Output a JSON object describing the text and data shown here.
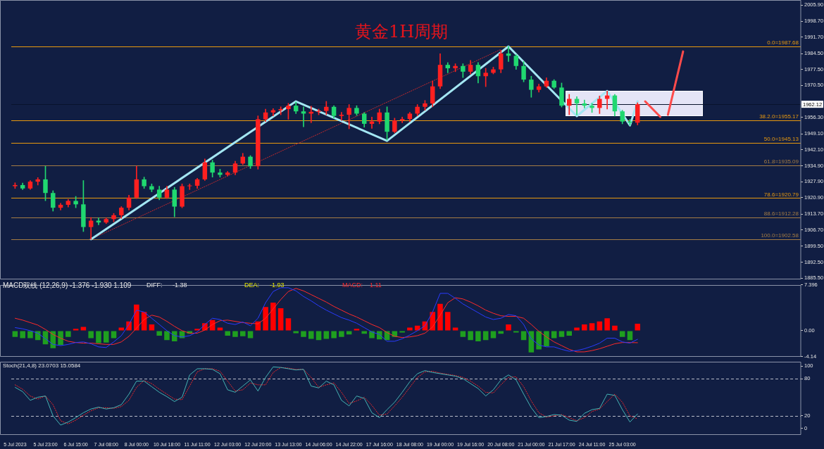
{
  "chart_data": [
    {
      "type": "candlestick",
      "title": "黄金1H周期",
      "categories": [
        null,
        null,
        null,
        null,
        null,
        null,
        null,
        null,
        null,
        null,
        null,
        null,
        null,
        null,
        null,
        null,
        null,
        null,
        null,
        null,
        null,
        null,
        null,
        null,
        null,
        null,
        null,
        null,
        null,
        null,
        null,
        null,
        null,
        null,
        null,
        null,
        null,
        null,
        null,
        null,
        null,
        null,
        null,
        null,
        null,
        null,
        null,
        null,
        null,
        null,
        null,
        null,
        null,
        null,
        null,
        null,
        null,
        null,
        null,
        null,
        null,
        null,
        null,
        null,
        null,
        null,
        null,
        null,
        null,
        null,
        null,
        null,
        null,
        null,
        null,
        null,
        null,
        null,
        null,
        null,
        null,
        null,
        null,
        null,
        null,
        null,
        null,
        null,
        null,
        null,
        null,
        null,
        null,
        null,
        null,
        null,
        null,
        null,
        null,
        null,
        null,
        null,
        null,
        null
      ],
      "ohlc": [
        [
          1926.0,
          1927.5,
          1925.0,
          1926.5
        ],
        [
          1926.5,
          1927.4,
          1924.5,
          1925.0
        ],
        [
          1925.0,
          1928.5,
          1924.6,
          1928.0
        ],
        [
          1928.0,
          1929.8,
          1926.5,
          1929.0
        ],
        [
          1929.0,
          1934.8,
          1919.6,
          1923.0
        ],
        [
          1923.0,
          1924.0,
          1915.0,
          1916.5
        ],
        [
          1916.5,
          1918.5,
          1915.5,
          1917.8
        ],
        [
          1917.8,
          1920.2,
          1916.8,
          1919.5
        ],
        [
          1919.5,
          1921.5,
          1916.5,
          1918.0
        ],
        [
          1918.0,
          1928.5,
          1906.0,
          1908.0
        ],
        [
          1908.0,
          1912.2,
          1902.58,
          1910.8
        ],
        [
          1910.8,
          1912.0,
          1909.0,
          1910.0
        ],
        [
          1910.0,
          1912.0,
          1909.5,
          1911.5
        ],
        [
          1911.5,
          1914.0,
          1910.3,
          1913.2
        ],
        [
          1913.2,
          1917.0,
          1911.8,
          1916.5
        ],
        [
          1916.5,
          1922.0,
          1915.5,
          1921.0
        ],
        [
          1921.0,
          1934.8,
          1920.5,
          1929.0
        ],
        [
          1929.0,
          1930.0,
          1925.0,
          1926.0
        ],
        [
          1926.0,
          1927.0,
          1923.5,
          1924.5
        ],
        [
          1924.5,
          1926.0,
          1920.0,
          1921.0
        ],
        [
          1921.0,
          1926.0,
          1920.5,
          1924.5
        ],
        [
          1924.5,
          1925.5,
          1912.5,
          1917.0
        ],
        [
          1917.0,
          1927.0,
          1916.5,
          1926.0
        ],
        [
          1926.0,
          1927.0,
          1924.5,
          1926.2
        ],
        [
          1926.2,
          1929.5,
          1925.0,
          1929.0
        ],
        [
          1929.0,
          1938.0,
          1928.5,
          1936.5
        ],
        [
          1936.5,
          1937.5,
          1930.0,
          1932.0
        ],
        [
          1932.0,
          1933.5,
          1930.0,
          1931.0
        ],
        [
          1931.0,
          1932.5,
          1930.5,
          1932.0
        ],
        [
          1932.0,
          1937.0,
          1931.0,
          1936.0
        ],
        [
          1936.0,
          1940.5,
          1935.5,
          1939.0
        ],
        [
          1939.0,
          1939.5,
          1933.8,
          1934.8
        ],
        [
          1934.8,
          1957.0,
          1933.5,
          1955.5
        ],
        [
          1955.5,
          1960.0,
          1954.5,
          1958.5
        ],
        [
          1958.5,
          1960.2,
          1957.0,
          1959.5
        ],
        [
          1959.5,
          1961.0,
          1957.5,
          1960.0
        ],
        [
          1960.0,
          1962.5,
          1955.5,
          1961.5
        ],
        [
          1961.5,
          1963.1,
          1958.0,
          1959.0
        ],
        [
          1959.0,
          1961.0,
          1952.2,
          1958.0
        ],
        [
          1958.0,
          1961.3,
          1954.0,
          1958.8
        ],
        [
          1958.8,
          1960.0,
          1957.5,
          1959.2
        ],
        [
          1959.2,
          1963.4,
          1957.5,
          1961.0
        ],
        [
          1961.0,
          1961.5,
          1956.0,
          1957.0
        ],
        [
          1957.0,
          1958.6,
          1955.0,
          1957.5
        ],
        [
          1957.5,
          1962.0,
          1951.3,
          1960.5
        ],
        [
          1960.5,
          1961.5,
          1957.2,
          1958.0
        ],
        [
          1958.0,
          1958.5,
          1952.0,
          1953.5
        ],
        [
          1953.5,
          1956.5,
          1951.5,
          1954.5
        ],
        [
          1954.5,
          1960.0,
          1953.5,
          1958.5
        ],
        [
          1958.5,
          1961.0,
          1946.3,
          1950.0
        ],
        [
          1950.0,
          1956.0,
          1949.5,
          1955.0
        ],
        [
          1955.0,
          1956.5,
          1954.0,
          1955.6
        ],
        [
          1955.6,
          1958.6,
          1954.5,
          1958.0
        ],
        [
          1958.0,
          1962.0,
          1957.0,
          1961.0
        ],
        [
          1961.0,
          1963.8,
          1959.5,
          1962.5
        ],
        [
          1962.5,
          1972.4,
          1961.0,
          1970.0
        ],
        [
          1970.0,
          1984.4,
          1969.0,
          1979.5
        ],
        [
          1979.5,
          1980.5,
          1976.0,
          1978.0
        ],
        [
          1978.0,
          1980.0,
          1976.5,
          1979.0
        ],
        [
          1979.0,
          1980.0,
          1973.9,
          1976.5
        ],
        [
          1976.5,
          1981.5,
          1975.5,
          1979.5
        ],
        [
          1979.5,
          1980.5,
          1971.5,
          1974.5
        ],
        [
          1974.5,
          1978.0,
          1969.9,
          1976.0
        ],
        [
          1976.0,
          1978.5,
          1975.5,
          1977.5
        ],
        [
          1977.5,
          1986.0,
          1976.0,
          1984.5
        ],
        [
          1984.5,
          1987.68,
          1981.0,
          1983.5
        ],
        [
          1983.5,
          1984.0,
          1977.5,
          1979.0
        ],
        [
          1979.0,
          1981.0,
          1972.0,
          1973.0
        ],
        [
          1973.0,
          1974.5,
          1965.2,
          1968.5
        ],
        [
          1968.5,
          1971.0,
          1967.5,
          1970.0
        ],
        [
          1970.0,
          1973.8,
          1969.5,
          1972.5
        ],
        [
          1972.5,
          1973.0,
          1969.0,
          1969.5
        ],
        [
          1969.5,
          1971.5,
          1960.9,
          1961.5
        ],
        [
          1961.5,
          1966.5,
          1957.5,
          1964.5
        ],
        [
          1964.5,
          1965.5,
          1957.5,
          1962.5
        ],
        [
          1962.5,
          1964.0,
          1960.5,
          1961.5
        ],
        [
          1961.5,
          1962.5,
          1958.5,
          1960.5
        ],
        [
          1960.5,
          1965.8,
          1958.0,
          1964.5
        ],
        [
          1964.5,
          1968.0,
          1960.0,
          1966.0
        ],
        [
          1966.0,
          1966.5,
          1956.9,
          1959.0
        ],
        [
          1959.0,
          1959.5,
          1953.5,
          1954.5
        ],
        [
          1954.5,
          1955.5,
          1952.8,
          1954.0
        ],
        [
          1954.0,
          1962.8,
          1953.0,
          1962.12
        ],
        null,
        null,
        null,
        null,
        null,
        null,
        null,
        null,
        null,
        null,
        null,
        null,
        null,
        null,
        null,
        null,
        null,
        null,
        null,
        null,
        null
      ],
      "colors": [
        "#ff2020",
        "#20d870",
        "#ff2020",
        "#ff2020",
        "#20d870",
        "#20d870",
        "#ff2020",
        "#ff2020",
        "#20d870",
        "#20d870",
        "#ff2020",
        "#20d870",
        "#ff2020",
        "#ff2020",
        "#ff2020",
        "#ff2020",
        "#ff2020",
        "#20d870",
        "#20d870",
        "#20d870",
        "#ff2020",
        "#20d870",
        "#ff2020",
        "#ff2020",
        "#ff2020",
        "#ff2020",
        "#20d870",
        "#20d870",
        "#ff2020",
        "#ff2020",
        "#ff2020",
        "#20d870",
        "#ff2020",
        "#ff2020",
        "#ff2020",
        "#ff2020",
        "#ff2020",
        "#20d870",
        "#20d870",
        "#ff2020",
        "#ff2020",
        "#ff2020",
        "#20d870",
        "#ff2020",
        "#ff2020",
        "#20d870",
        "#20d870",
        "#ff2020",
        "#ff2020",
        "#20d870",
        "#ff2020",
        "#ff2020",
        "#ff2020",
        "#ff2020",
        "#ff2020",
        "#ff2020",
        "#ff2020",
        "#20d870",
        "#ff2020",
        "#20d870",
        "#ff2020",
        "#20d870",
        "#ff2020",
        "#ff2020",
        "#ff2020",
        "#20d870",
        "#20d870",
        "#20d870",
        "#20d870",
        "#ff2020",
        "#ff2020",
        "#20d870",
        "#20d870",
        "#ff2020",
        "#20d870",
        "#20d870",
        "#20d870",
        "#ff2020",
        "#ff2020",
        "#20d870",
        "#20d870",
        "#20d870",
        "#ff2020",
        null,
        null,
        null,
        null,
        null,
        null,
        null,
        null,
        null,
        null,
        null,
        null,
        null,
        null,
        null,
        null,
        null,
        null,
        null,
        null,
        null
      ],
      "series": [
        {
          "type": "line",
          "color": "#a3e6f2",
          "values": [
            null,
            null,
            null,
            null,
            null,
            null,
            null,
            null,
            null,
            null,
            1902.6,
            null,
            null,
            null,
            null,
            null,
            null,
            null,
            null,
            null,
            null,
            null,
            null,
            null,
            null,
            null,
            null,
            null,
            null,
            null,
            null,
            null,
            null,
            null,
            null,
            null,
            null,
            1963.4,
            null,
            null,
            null,
            null,
            null,
            null,
            null,
            null,
            null,
            null,
            null,
            1946.0,
            null,
            null,
            null,
            null,
            null,
            null,
            null,
            null,
            null,
            null,
            null,
            null,
            null,
            null,
            null,
            1987.6,
            null,
            null,
            null,
            null,
            null,
            null,
            null,
            null,
            1956.9,
            null,
            null,
            null,
            1968.0,
            null,
            null,
            1952.8,
            1963.4,
            null,
            null,
            null,
            null,
            null,
            null,
            null,
            null,
            null,
            null,
            null,
            null,
            null,
            null,
            null,
            null,
            null,
            null,
            null,
            null,
            null
          ]
        },
        {
          "type": "line",
          "color": "#ff4b4b",
          "values": [
            null,
            null,
            null,
            null,
            null,
            null,
            null,
            null,
            null,
            null,
            null,
            null,
            null,
            null,
            null,
            null,
            null,
            null,
            null,
            null,
            null,
            null,
            null,
            null,
            null,
            null,
            null,
            null,
            null,
            null,
            null,
            null,
            null,
            null,
            null,
            null,
            null,
            null,
            null,
            null,
            null,
            null,
            null,
            null,
            null,
            null,
            null,
            null,
            null,
            null,
            null,
            null,
            null,
            null,
            null,
            null,
            null,
            null,
            null,
            null,
            null,
            null,
            null,
            null,
            null,
            null,
            null,
            null,
            null,
            null,
            null,
            null,
            null,
            null,
            null,
            null,
            null,
            null,
            null,
            null,
            null,
            null,
            null,
            1963.4,
            null,
            1956.6,
            null,
            null,
            null,
            null,
            null,
            null,
            null,
            null,
            null,
            null,
            null,
            null,
            null,
            null,
            null,
            null,
            null,
            null
          ]
        },
        {
          "type": "line",
          "color": "#ff4b4b",
          "values": [
            null,
            null,
            null,
            null,
            null,
            null,
            null,
            null,
            null,
            null,
            null,
            null,
            null,
            null,
            null,
            null,
            null,
            null,
            null,
            null,
            null,
            null,
            null,
            null,
            null,
            null,
            null,
            null,
            null,
            null,
            null,
            null,
            null,
            null,
            null,
            null,
            null,
            null,
            null,
            null,
            null,
            null,
            null,
            null,
            null,
            null,
            null,
            null,
            null,
            null,
            null,
            null,
            null,
            null,
            null,
            null,
            null,
            null,
            null,
            null,
            null,
            null,
            null,
            null,
            null,
            null,
            null,
            null,
            null,
            null,
            null,
            null,
            null,
            null,
            null,
            null,
            null,
            null,
            null,
            null,
            null,
            null,
            null,
            null,
            null,
            null,
            1957.5,
            null,
            1985.4,
            null,
            null,
            null,
            null,
            null,
            null,
            null,
            null,
            null,
            null,
            null,
            null,
            null,
            null,
            null
          ]
        },
        {
          "type": "line",
          "color": "#d42a2a",
          "line_style": "dotted",
          "values": [
            null,
            null,
            null,
            null,
            null,
            null,
            null,
            null,
            null,
            null,
            1902.6,
            null,
            null,
            null,
            null,
            null,
            null,
            null,
            null,
            null,
            null,
            null,
            null,
            null,
            null,
            null,
            null,
            null,
            null,
            null,
            null,
            null,
            null,
            null,
            null,
            null,
            null,
            null,
            null,
            null,
            null,
            null,
            null,
            null,
            null,
            null,
            null,
            null,
            null,
            null,
            null,
            null,
            null,
            null,
            null,
            null,
            null,
            null,
            null,
            null,
            null,
            null,
            null,
            null,
            1986.3,
            null,
            null,
            null,
            null,
            null,
            null,
            null,
            null,
            null,
            null,
            null,
            null,
            null,
            null,
            null,
            null,
            null,
            null,
            null,
            null,
            null,
            null,
            null,
            null,
            null,
            null,
            null,
            null,
            null,
            null,
            null,
            null,
            null,
            null,
            null,
            null,
            null,
            null,
            null
          ]
        }
      ],
      "ylim": [
        1884.9,
        2008.1
      ],
      "yticks": [
        {
          "value": 2005.9,
          "label": "2005.90"
        },
        {
          "value": 1998.7,
          "label": "1998.70"
        },
        {
          "value": 1991.7,
          "label": "1991.70"
        },
        {
          "value": 1984.5,
          "label": "1984.50"
        },
        {
          "value": 1977.5,
          "label": "1977.50"
        },
        {
          "value": 1970.5,
          "label": "1970.50"
        },
        {
          "value": 1956.3,
          "label": "1956.30"
        },
        {
          "value": 1949.1,
          "label": "1949.10"
        },
        {
          "value": 1942.1,
          "label": "1942.10"
        },
        {
          "value": 1934.9,
          "label": "1934.90"
        },
        {
          "value": 1927.9,
          "label": "1927.90"
        },
        {
          "value": 1920.9,
          "label": "1920.90"
        },
        {
          "value": 1913.7,
          "label": "1913.70"
        },
        {
          "value": 1906.7,
          "label": "1906.70"
        },
        {
          "value": 1899.5,
          "label": "1899.50"
        },
        {
          "value": 1892.5,
          "label": "1892.50"
        },
        {
          "value": 1885.5,
          "label": "1885.50"
        }
      ],
      "ref_lines": [
        {
          "axis": "y",
          "value": 1987.68,
          "label": "0.0=1987.68",
          "color": "#e8990f"
        },
        {
          "axis": "y",
          "value": 1955.17,
          "label": "38.2.0=1955.17",
          "color": "#e8990f"
        },
        {
          "axis": "y",
          "value": 1945.13,
          "label": "50.0=1945.13",
          "color": "#e8990f"
        },
        {
          "axis": "y",
          "value": 1935.09,
          "label": "61.8=1935.09",
          "color": "#a47c44"
        },
        {
          "axis": "y",
          "value": 1920.79,
          "label": "78.6=1920.79",
          "color": "#e8990f"
        },
        {
          "axis": "y",
          "value": 1912.28,
          "label": "88.6=1912.28",
          "color": "#a47c44"
        },
        {
          "axis": "y",
          "value": 1902.58,
          "label": "100.0=1902.58",
          "color": "#a47c44"
        },
        {
          "axis": "y",
          "value": 1962.12,
          "color": "#08122c"
        }
      ],
      "annotations": [
        {
          "text": "1962.12",
          "y": 1962.12
        }
      ],
      "grid": false,
      "legend": false,
      "marker": "none",
      "tick_labels": "y"
    },
    {
      "type": "bar",
      "title": "MACD双线 (12,26,9) -1.376 -1.930 1.109",
      "categories": [
        null,
        null,
        null,
        null,
        null,
        null,
        null,
        null,
        null,
        null,
        null,
        null,
        null,
        null,
        null,
        null,
        null,
        null,
        null,
        null,
        null,
        null,
        null,
        null,
        null,
        null,
        null,
        null,
        null,
        null,
        null,
        null,
        null,
        null,
        null,
        null,
        null,
        null,
        null,
        null,
        null,
        null,
        null,
        null,
        null,
        null,
        null,
        null,
        null,
        null,
        null,
        null,
        null,
        null,
        null,
        null,
        null,
        null,
        null,
        null,
        null,
        null,
        null,
        null,
        null,
        null,
        null,
        null,
        null,
        null,
        null,
        null,
        null,
        null,
        null,
        null,
        null,
        null,
        null,
        null,
        null,
        null,
        null,
        null,
        null,
        null,
        null,
        null,
        null,
        null,
        null,
        null,
        null,
        null,
        null,
        null,
        null,
        null,
        null,
        null,
        null,
        null,
        null,
        null
      ],
      "series": [
        {
          "type": "bar",
          "values": [
            -1.0,
            -1.2,
            -1.2,
            -1.5,
            -2.2,
            -2.8,
            -2.3,
            -1.0,
            0.3,
            0.6,
            -1.2,
            -2.0,
            -1.9,
            -1.2,
            0.5,
            1.5,
            4.2,
            3.0,
            1.0,
            -0.8,
            -1.5,
            -1.7,
            -1.2,
            -0.5,
            0.3,
            1.2,
            1.7,
            0.5,
            -0.8,
            -1.0,
            -0.9,
            -1.2,
            1.5,
            3.8,
            4.5,
            3.6,
            2.0,
            -0.4,
            -1.0,
            -1.3,
            -1.5,
            -1.3,
            -1.2,
            -1.0,
            -0.6,
            0.3,
            -0.5,
            -1.2,
            -1.4,
            -1.5,
            -1.0,
            -0.3,
            0.5,
            0.8,
            1.5,
            3.0,
            4.3,
            3.0,
            0.5,
            -1.0,
            -1.5,
            -1.7,
            -1.5,
            -1.2,
            -0.5,
            1.0,
            -0.3,
            -1.5,
            -3.5,
            -3.0,
            -2.5,
            -1.2,
            -1.0,
            -0.8,
            0.5,
            1.0,
            1.2,
            1.5,
            2.0,
            0.8,
            -1.0,
            -1.5,
            1.11,
            null,
            null,
            null,
            null,
            null,
            null,
            null,
            null,
            null,
            null,
            null,
            null,
            null,
            null,
            null,
            null,
            null,
            null,
            null,
            null,
            null
          ],
          "colors": [
            "#1f9f1f",
            "#1f9f1f",
            "#1f9f1f",
            "#1f9f1f",
            "#1f9f1f",
            "#1f9f1f",
            "#1f9f1f",
            "#1f9f1f",
            "#ff0000",
            "#ff0000",
            "#1f9f1f",
            "#1f9f1f",
            "#1f9f1f",
            "#1f9f1f",
            "#ff0000",
            "#ff0000",
            "#ff0000",
            "#ff0000",
            "#ff0000",
            "#1f9f1f",
            "#1f9f1f",
            "#1f9f1f",
            "#1f9f1f",
            "#1f9f1f",
            "#ff0000",
            "#ff0000",
            "#ff0000",
            "#ff0000",
            "#1f9f1f",
            "#1f9f1f",
            "#1f9f1f",
            "#1f9f1f",
            "#ff0000",
            "#ff0000",
            "#ff0000",
            "#ff0000",
            "#ff0000",
            "#1f9f1f",
            "#1f9f1f",
            "#1f9f1f",
            "#1f9f1f",
            "#1f9f1f",
            "#1f9f1f",
            "#1f9f1f",
            "#1f9f1f",
            "#ff0000",
            "#1f9f1f",
            "#1f9f1f",
            "#1f9f1f",
            "#1f9f1f",
            "#1f9f1f",
            "#1f9f1f",
            "#ff0000",
            "#ff0000",
            "#ff0000",
            "#ff0000",
            "#ff0000",
            "#ff0000",
            "#ff0000",
            "#1f9f1f",
            "#1f9f1f",
            "#1f9f1f",
            "#1f9f1f",
            "#1f9f1f",
            "#1f9f1f",
            "#ff0000",
            "#1f9f1f",
            "#1f9f1f",
            "#1f9f1f",
            "#1f9f1f",
            "#1f9f1f",
            "#1f9f1f",
            "#1f9f1f",
            "#1f9f1f",
            "#ff0000",
            "#ff0000",
            "#ff0000",
            "#ff0000",
            "#ff0000",
            "#ff0000",
            "#1f9f1f",
            "#1f9f1f",
            "#ff0000",
            null,
            null,
            null,
            null,
            null,
            null,
            null,
            null,
            null,
            null,
            null,
            null,
            null,
            null,
            null,
            null,
            null,
            null,
            null,
            null,
            null
          ]
        },
        {
          "type": "line",
          "color": "#2a3cff",
          "values": [
            0.5,
            0.3,
            0.0,
            -0.4,
            -1.3,
            -2.2,
            -2.4,
            -2.2,
            -1.9,
            -1.8,
            -2.1,
            -2.6,
            -2.7,
            -1.8,
            -0.8,
            1.0,
            3.3,
            3.0,
            2.0,
            1.0,
            0.0,
            -0.8,
            -1.0,
            -0.8,
            -0.2,
            1.0,
            2.0,
            1.8,
            1.2,
            1.0,
            1.4,
            0.8,
            2.0,
            4.5,
            6.3,
            6.9,
            6.9,
            6.4,
            5.5,
            4.8,
            4.0,
            3.3,
            2.7,
            2.1,
            1.7,
            1.2,
            0.5,
            -0.2,
            -0.6,
            -1.7,
            -1.7,
            -1.3,
            -0.7,
            0.0,
            0.8,
            3.0,
            6.0,
            6.0,
            5.2,
            4.3,
            3.6,
            2.9,
            2.2,
            1.8,
            2.0,
            2.6,
            2.4,
            1.0,
            -1.3,
            -2.3,
            -2.6,
            -2.6,
            -3.0,
            -3.3,
            -3.2,
            -2.9,
            -2.5,
            -2.0,
            -1.2,
            -1.2,
            -1.8,
            -2.0,
            -1.38,
            null,
            null,
            null,
            null,
            null,
            null,
            null,
            null,
            null,
            null,
            null,
            null,
            null,
            null,
            null,
            null,
            null,
            null,
            null,
            null,
            null
          ]
        },
        {
          "type": "line",
          "color": "#ff2a2a",
          "values": [
            2.0,
            1.7,
            1.3,
            0.9,
            0.2,
            -0.6,
            -1.2,
            -1.7,
            -1.9,
            -2.0,
            -2.0,
            -2.1,
            -2.2,
            -2.2,
            -1.8,
            -0.9,
            0.4,
            1.8,
            2.5,
            2.2,
            1.5,
            0.7,
            0.0,
            -0.4,
            -0.4,
            0.1,
            1.0,
            1.6,
            1.7,
            1.5,
            1.3,
            1.2,
            1.1,
            2.0,
            3.5,
            5.0,
            6.3,
            6.8,
            6.4,
            5.8,
            5.2,
            4.6,
            3.9,
            3.3,
            2.7,
            2.2,
            1.6,
            1.0,
            0.5,
            -0.3,
            -0.9,
            -1.1,
            -1.0,
            -0.8,
            -0.4,
            0.6,
            2.5,
            4.5,
            5.3,
            5.1,
            4.6,
            4.0,
            3.3,
            2.8,
            2.4,
            2.3,
            2.3,
            2.0,
            1.0,
            -0.1,
            -1.0,
            -1.8,
            -2.4,
            -3.0,
            -3.4,
            -3.4,
            -3.2,
            -2.9,
            -2.5,
            -2.1,
            -1.9,
            -1.9,
            -1.93,
            null,
            null,
            null,
            null,
            null,
            null,
            null,
            null,
            null,
            null,
            null,
            null,
            null,
            null,
            null,
            null,
            null,
            null,
            null,
            null,
            null
          ]
        }
      ],
      "ylim": [
        -4.14,
        7.396
      ],
      "yticks": [
        7.396,
        {
          "value": 0,
          "label": "0.00"
        },
        -4.14
      ],
      "annotations": [
        "DIFF:",
        "-1.38",
        "DEA:",
        "-1.93",
        "MACD:",
        "1.11"
      ],
      "grid": false,
      "legend": false,
      "marker": "none",
      "tick_labels": "y"
    },
    {
      "type": "line",
      "title": "Stoch(21,4,8) 23.0703 15.0584",
      "categories": [
        "5 Jul 2023",
        null,
        null,
        null,
        "5 Jul 23:00",
        null,
        null,
        null,
        "6 Jul 15:00",
        null,
        null,
        null,
        "7 Jul 08:00",
        null,
        null,
        null,
        "8 Jul 00:00",
        null,
        null,
        null,
        "10 Jul 18:00",
        null,
        null,
        null,
        "11 Jul 11:00",
        null,
        null,
        null,
        "12 Jul 03:00",
        null,
        null,
        null,
        "12 Jul 20:00",
        null,
        null,
        null,
        "13 Jul 13:00",
        null,
        null,
        null,
        "14 Jul 06:00",
        null,
        null,
        null,
        "14 Jul 22:00",
        null,
        null,
        null,
        "17 Jul 16:00",
        null,
        null,
        null,
        "18 Jul 08:00",
        null,
        null,
        null,
        "19 Jul 00:00",
        null,
        null,
        null,
        "19 Jul 16:00",
        null,
        null,
        null,
        "20 Jul 08:00",
        null,
        null,
        null,
        "21 Jul 00:00",
        null,
        null,
        null,
        "21 Jul 17:00",
        null,
        null,
        null,
        "24 Jul 11:00",
        null,
        null,
        null,
        "25 Jul 03:00",
        null,
        null,
        null,
        null,
        null,
        null,
        null,
        null,
        null,
        null,
        null,
        null,
        null,
        null,
        null,
        null,
        null,
        null,
        null,
        null,
        null,
        null,
        null
      ],
      "series": [
        {
          "color": "#45b4b4",
          "values": [
            66,
            59,
            45,
            50,
            52,
            20,
            5,
            10,
            17,
            25,
            31,
            34,
            31,
            33,
            38,
            55,
            76,
            76,
            67,
            58,
            51,
            43,
            50,
            86,
            96,
            96,
            95,
            88,
            62,
            58,
            68,
            78,
            60,
            82,
            99,
            98,
            96,
            94,
            95,
            68,
            65,
            76,
            70,
            45,
            36,
            52,
            48,
            25,
            17,
            30,
            42,
            58,
            75,
            88,
            93,
            90,
            88,
            86,
            84,
            80,
            72,
            64,
            52,
            62,
            78,
            86,
            78,
            55,
            33,
            17,
            19,
            22,
            21,
            13,
            11,
            24,
            30,
            32,
            55,
            53,
            30,
            10,
            23.07,
            null,
            null,
            null,
            null,
            null,
            null,
            null,
            null,
            null,
            null,
            null,
            null,
            null,
            null,
            null,
            null,
            null,
            null,
            null,
            null,
            null
          ]
        },
        {
          "color": "#ff2a2a",
          "line_style": "dotted",
          "values": [
            70,
            63,
            52,
            47,
            52,
            38,
            12,
            7,
            13,
            21,
            28,
            33,
            33,
            32,
            35,
            45,
            66,
            77,
            72,
            63,
            55,
            47,
            46,
            68,
            91,
            96,
            96,
            92,
            76,
            60,
            62,
            73,
            70,
            70,
            90,
            98,
            97,
            95,
            95,
            82,
            66,
            70,
            73,
            58,
            40,
            44,
            50,
            37,
            21,
            23,
            36,
            50,
            66,
            82,
            91,
            92,
            89,
            87,
            85,
            82,
            76,
            68,
            58,
            57,
            70,
            82,
            83,
            67,
            44,
            25,
            18,
            20,
            22,
            17,
            12,
            17,
            27,
            31,
            43,
            55,
            42,
            20,
            15.06,
            null,
            null,
            null,
            null,
            null,
            null,
            null,
            null,
            null,
            null,
            null,
            null,
            null,
            null,
            null,
            null,
            null,
            null,
            null,
            null,
            null
          ]
        }
      ],
      "ylim": [
        -10.4,
        107.3
      ],
      "yticks": [
        0,
        20,
        80,
        100
      ],
      "ref_lines": [
        {
          "axis": "y",
          "value": 80,
          "color": "#b8bcc8",
          "line_style": "dashed"
        },
        {
          "axis": "y",
          "value": 20,
          "color": "#b8bcc8",
          "line_style": "dashed"
        }
      ],
      "grid": false,
      "legend": false,
      "marker": "none"
    }
  ]
}
